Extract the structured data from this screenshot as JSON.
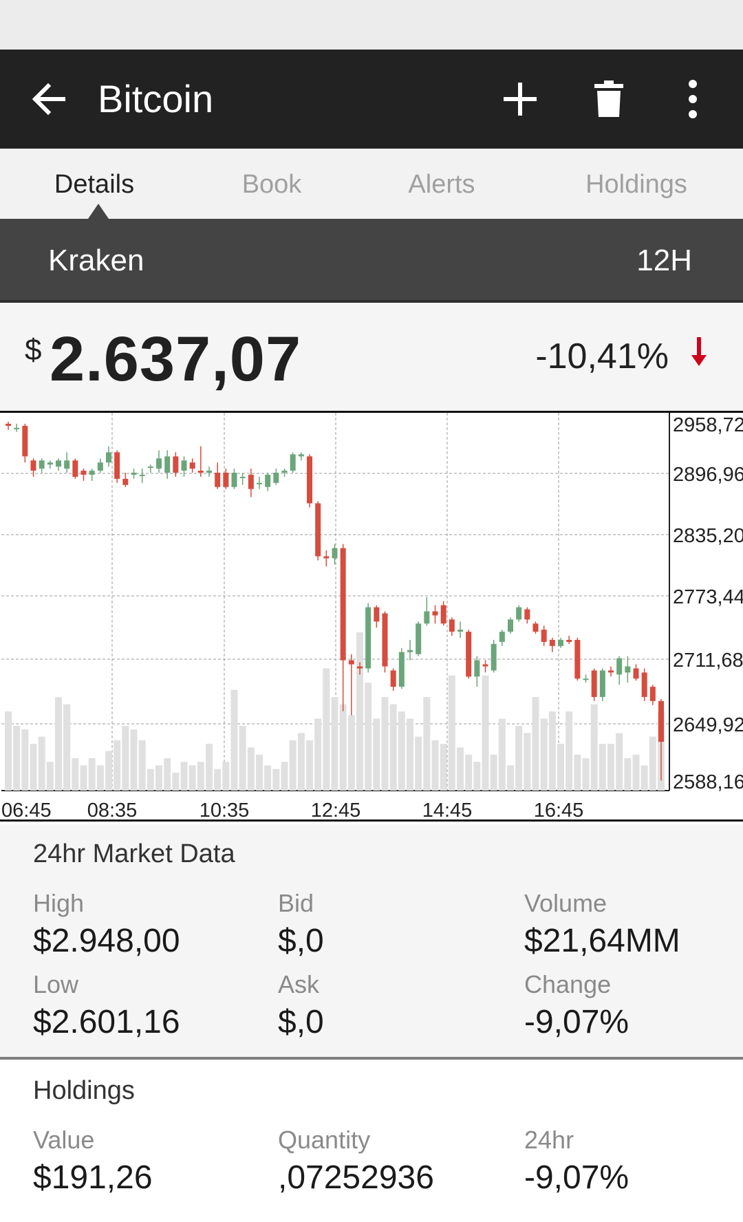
{
  "toolbar": {
    "title": "Bitcoin",
    "icons": {
      "back": "arrow-left",
      "add": "plus",
      "delete": "trash",
      "more": "vertical-dots"
    }
  },
  "tabs": [
    {
      "label": "Details",
      "active": true
    },
    {
      "label": "Book",
      "active": false
    },
    {
      "label": "Alerts",
      "active": false
    },
    {
      "label": "Holdings",
      "active": false
    }
  ],
  "exchange": {
    "name": "Kraken",
    "period": "12H"
  },
  "price": {
    "currency": "$",
    "value": "2.637,07",
    "change": "-10,41%",
    "direction": "down"
  },
  "colors": {
    "up": "#6aa67a",
    "down": "#d64c3f",
    "volume": "#e0e0e0",
    "arrow": "#d0021b"
  },
  "chart_data": {
    "type": "candlestick",
    "x_ticks": [
      "06:45",
      "08:35",
      "10:35",
      "12:45",
      "14:45",
      "16:45"
    ],
    "y_ticks": [
      "2958,72",
      "2896,96",
      "2835,20",
      "2773,44",
      "2711,68",
      "2649,92",
      "2588,16"
    ],
    "ylim": [
      2588.16,
      2958.72
    ],
    "grid": true,
    "candles": [
      {
        "o": 2948,
        "c": 2946,
        "h": 2950,
        "l": 2942
      },
      {
        "o": 2944,
        "c": 2944,
        "h": 2948,
        "l": 2940
      },
      {
        "o": 2946,
        "c": 2916,
        "h": 2948,
        "l": 2910
      },
      {
        "o": 2912,
        "c": 2902,
        "h": 2914,
        "l": 2896
      },
      {
        "o": 2904,
        "c": 2912,
        "h": 2914,
        "l": 2900
      },
      {
        "o": 2908,
        "c": 2910,
        "h": 2912,
        "l": 2904
      },
      {
        "o": 2906,
        "c": 2912,
        "h": 2914,
        "l": 2902
      },
      {
        "o": 2904,
        "c": 2912,
        "h": 2920,
        "l": 2900
      },
      {
        "o": 2912,
        "c": 2896,
        "h": 2914,
        "l": 2894
      },
      {
        "o": 2902,
        "c": 2898,
        "h": 2904,
        "l": 2892
      },
      {
        "o": 2898,
        "c": 2902,
        "h": 2904,
        "l": 2892
      },
      {
        "o": 2902,
        "c": 2910,
        "h": 2914,
        "l": 2900
      },
      {
        "o": 2910,
        "c": 2920,
        "h": 2926,
        "l": 2906
      },
      {
        "o": 2920,
        "c": 2894,
        "h": 2922,
        "l": 2890
      },
      {
        "o": 2894,
        "c": 2888,
        "h": 2900,
        "l": 2886
      },
      {
        "o": 2898,
        "c": 2900,
        "h": 2904,
        "l": 2894
      },
      {
        "o": 2898,
        "c": 2898,
        "h": 2904,
        "l": 2890
      },
      {
        "o": 2906,
        "c": 2906,
        "h": 2908,
        "l": 2900
      },
      {
        "o": 2904,
        "c": 2914,
        "h": 2922,
        "l": 2900
      },
      {
        "o": 2900,
        "c": 2916,
        "h": 2922,
        "l": 2894
      },
      {
        "o": 2916,
        "c": 2900,
        "h": 2920,
        "l": 2896
      },
      {
        "o": 2902,
        "c": 2912,
        "h": 2916,
        "l": 2896
      },
      {
        "o": 2910,
        "c": 2904,
        "h": 2914,
        "l": 2900
      },
      {
        "o": 2902,
        "c": 2900,
        "h": 2926,
        "l": 2896
      },
      {
        "o": 2900,
        "c": 2902,
        "h": 2906,
        "l": 2896
      },
      {
        "o": 2900,
        "c": 2886,
        "h": 2910,
        "l": 2884
      },
      {
        "o": 2900,
        "c": 2886,
        "h": 2904,
        "l": 2884
      },
      {
        "o": 2886,
        "c": 2900,
        "h": 2904,
        "l": 2884
      },
      {
        "o": 2896,
        "c": 2896,
        "h": 2900,
        "l": 2888
      },
      {
        "o": 2898,
        "c": 2884,
        "h": 2904,
        "l": 2876
      },
      {
        "o": 2890,
        "c": 2890,
        "h": 2896,
        "l": 2884
      },
      {
        "o": 2886,
        "c": 2898,
        "h": 2900,
        "l": 2882
      },
      {
        "o": 2890,
        "c": 2900,
        "h": 2904,
        "l": 2888
      },
      {
        "o": 2900,
        "c": 2902,
        "h": 2904,
        "l": 2896
      },
      {
        "o": 2902,
        "c": 2918,
        "h": 2920,
        "l": 2900
      },
      {
        "o": 2916,
        "c": 2918,
        "h": 2920,
        "l": 2912
      },
      {
        "o": 2916,
        "c": 2870,
        "h": 2918,
        "l": 2866
      },
      {
        "o": 2870,
        "c": 2818,
        "h": 2872,
        "l": 2814
      },
      {
        "o": 2818,
        "c": 2816,
        "h": 2824,
        "l": 2808
      },
      {
        "o": 2816,
        "c": 2826,
        "h": 2830,
        "l": 2810
      },
      {
        "o": 2826,
        "c": 2716,
        "h": 2830,
        "l": 2666
      },
      {
        "o": 2716,
        "c": 2712,
        "h": 2722,
        "l": 2662
      },
      {
        "o": 2710,
        "c": 2708,
        "h": 2714,
        "l": 2702
      },
      {
        "o": 2708,
        "c": 2768,
        "h": 2772,
        "l": 2704
      },
      {
        "o": 2768,
        "c": 2754,
        "h": 2770,
        "l": 2748
      },
      {
        "o": 2762,
        "c": 2710,
        "h": 2764,
        "l": 2704
      },
      {
        "o": 2706,
        "c": 2690,
        "h": 2708,
        "l": 2686
      },
      {
        "o": 2690,
        "c": 2724,
        "h": 2728,
        "l": 2688
      },
      {
        "o": 2724,
        "c": 2726,
        "h": 2736,
        "l": 2716
      },
      {
        "o": 2722,
        "c": 2752,
        "h": 2754,
        "l": 2720
      },
      {
        "o": 2752,
        "c": 2764,
        "h": 2778,
        "l": 2750
      },
      {
        "o": 2764,
        "c": 2760,
        "h": 2770,
        "l": 2752
      },
      {
        "o": 2770,
        "c": 2752,
        "h": 2774,
        "l": 2750
      },
      {
        "o": 2756,
        "c": 2744,
        "h": 2758,
        "l": 2740
      },
      {
        "o": 2744,
        "c": 2746,
        "h": 2754,
        "l": 2738
      },
      {
        "o": 2744,
        "c": 2700,
        "h": 2746,
        "l": 2698
      },
      {
        "o": 2700,
        "c": 2716,
        "h": 2720,
        "l": 2690
      },
      {
        "o": 2712,
        "c": 2710,
        "h": 2716,
        "l": 2704
      },
      {
        "o": 2706,
        "c": 2732,
        "h": 2736,
        "l": 2704
      },
      {
        "o": 2734,
        "c": 2744,
        "h": 2746,
        "l": 2730
      },
      {
        "o": 2744,
        "c": 2756,
        "h": 2758,
        "l": 2742
      },
      {
        "o": 2756,
        "c": 2768,
        "h": 2770,
        "l": 2754
      },
      {
        "o": 2766,
        "c": 2756,
        "h": 2768,
        "l": 2752
      },
      {
        "o": 2752,
        "c": 2744,
        "h": 2754,
        "l": 2742
      },
      {
        "o": 2746,
        "c": 2734,
        "h": 2750,
        "l": 2730
      },
      {
        "o": 2736,
        "c": 2730,
        "h": 2738,
        "l": 2724
      },
      {
        "o": 2730,
        "c": 2736,
        "h": 2738,
        "l": 2728
      },
      {
        "o": 2736,
        "c": 2734,
        "h": 2740,
        "l": 2732
      },
      {
        "o": 2736,
        "c": 2698,
        "h": 2738,
        "l": 2696
      },
      {
        "o": 2698,
        "c": 2698,
        "h": 2702,
        "l": 2694
      },
      {
        "o": 2706,
        "c": 2680,
        "h": 2708,
        "l": 2676
      },
      {
        "o": 2680,
        "c": 2706,
        "h": 2708,
        "l": 2676
      },
      {
        "o": 2706,
        "c": 2704,
        "h": 2710,
        "l": 2700
      },
      {
        "o": 2702,
        "c": 2718,
        "h": 2720,
        "l": 2692
      },
      {
        "o": 2704,
        "c": 2710,
        "h": 2720,
        "l": 2694
      },
      {
        "o": 2708,
        "c": 2698,
        "h": 2712,
        "l": 2696
      },
      {
        "o": 2704,
        "c": 2680,
        "h": 2708,
        "l": 2676
      },
      {
        "o": 2690,
        "c": 2676,
        "h": 2692,
        "l": 2672
      },
      {
        "o": 2676,
        "c": 2636,
        "h": 2678,
        "l": 2598
      }
    ],
    "volume": [
      22,
      18,
      17,
      13,
      15,
      8,
      26,
      24,
      9,
      7,
      9,
      7,
      11,
      14,
      18,
      17,
      14,
      6,
      7,
      9,
      5,
      8,
      7,
      8,
      13,
      6,
      8,
      28,
      18,
      12,
      10,
      7,
      6,
      8,
      14,
      16,
      14,
      20,
      34,
      26,
      24,
      21,
      44,
      30,
      20,
      26,
      24,
      22,
      20,
      15,
      26,
      14,
      13,
      32,
      12,
      10,
      8,
      32,
      10,
      20,
      7,
      18,
      16,
      26,
      20,
      22,
      13,
      22,
      10,
      9,
      24,
      13,
      13,
      16,
      9,
      10,
      7,
      15,
      22
    ]
  },
  "market": {
    "title": "24hr Market Data",
    "high_label": "High",
    "high": "$2.948,00",
    "low_label": "Low",
    "low": "$2.601,16",
    "bid_label": "Bid",
    "bid": "$,0",
    "ask_label": "Ask",
    "ask": "$,0",
    "volume_label": "Volume",
    "volume": "$21,64MM",
    "change_label": "Change",
    "change": "-9,07%"
  },
  "holdings": {
    "title": "Holdings",
    "value_label": "Value",
    "value": "$191,26",
    "quantity_label": "Quantity",
    "quantity": ",07252936",
    "h24_label": "24hr",
    "h24": "-9,07%"
  }
}
